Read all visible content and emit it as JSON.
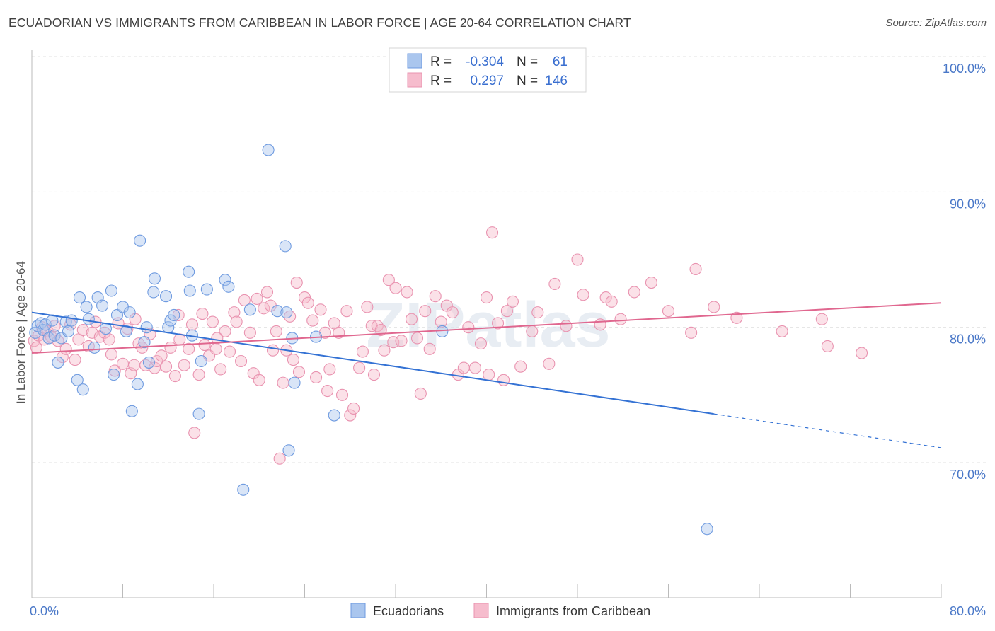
{
  "title": "ECUADORIAN VS IMMIGRANTS FROM CARIBBEAN IN LABOR FORCE | AGE 20-64 CORRELATION CHART",
  "source": "Source: ZipAtlas.com",
  "watermark": "ZIPatlas",
  "legend_top": [
    {
      "r_label": "R =",
      "r_value": "-0.304",
      "n_label": "N =",
      "n_value": "61",
      "color": "#aac6ee",
      "stroke": "#6f9be0"
    },
    {
      "r_label": "R =",
      "r_value": "0.297",
      "n_label": "N =",
      "n_value": "146",
      "color": "#f6bccd",
      "stroke": "#e993b0"
    }
  ],
  "chart_data": {
    "type": "scatter",
    "title": "ECUADORIAN VS IMMIGRANTS FROM CARIBBEAN IN LABOR FORCE | AGE 20-64 CORRELATION CHART",
    "xlabel": "",
    "ylabel": "In Labor Force | Age 20-64",
    "xlim": [
      0,
      80
    ],
    "ylim": [
      61,
      101.5
    ],
    "x_tick_labels": [
      "0.0%",
      "80.0%"
    ],
    "y_ticks": [
      70,
      80,
      90,
      100
    ],
    "y_tick_labels": [
      "70.0%",
      "80.0%",
      "90.0%",
      "100.0%"
    ],
    "grid": true,
    "legend_position": "top-center",
    "series": [
      {
        "name": "Ecuadorians",
        "color": "#aac6ee",
        "stroke": "#6f9be0",
        "trend": {
          "x0": 0,
          "y0": 81.1,
          "x1": 60,
          "y1": 73.6,
          "dashed_to_x": 80,
          "dashed_to_y": 71.1,
          "color": "#3472d4"
        },
        "points": [
          [
            0.3,
            79.6
          ],
          [
            0.5,
            80.1
          ],
          [
            0.8,
            80.3
          ],
          [
            1.0,
            79.8
          ],
          [
            1.2,
            80.2
          ],
          [
            1.5,
            79.2
          ],
          [
            1.8,
            80.5
          ],
          [
            2.0,
            79.4
          ],
          [
            2.3,
            77.4
          ],
          [
            2.6,
            79.2
          ],
          [
            3.0,
            80.4
          ],
          [
            3.2,
            79.7
          ],
          [
            3.5,
            80.5
          ],
          [
            4.0,
            76.1
          ],
          [
            4.2,
            82.2
          ],
          [
            4.5,
            75.4
          ],
          [
            4.8,
            81.5
          ],
          [
            5.0,
            80.6
          ],
          [
            5.5,
            78.5
          ],
          [
            5.8,
            82.2
          ],
          [
            6.2,
            81.6
          ],
          [
            6.5,
            79.9
          ],
          [
            7.0,
            82.7
          ],
          [
            7.2,
            76.5
          ],
          [
            7.5,
            80.9
          ],
          [
            8.0,
            81.5
          ],
          [
            8.3,
            79.7
          ],
          [
            8.6,
            81.1
          ],
          [
            8.8,
            73.8
          ],
          [
            9.3,
            75.8
          ],
          [
            9.5,
            86.4
          ],
          [
            9.9,
            78.9
          ],
          [
            10.1,
            80.0
          ],
          [
            10.3,
            77.4
          ],
          [
            10.7,
            82.6
          ],
          [
            10.8,
            83.6
          ],
          [
            11.8,
            82.3
          ],
          [
            12.0,
            80.0
          ],
          [
            12.2,
            80.5
          ],
          [
            12.5,
            80.9
          ],
          [
            13.8,
            84.1
          ],
          [
            13.9,
            82.7
          ],
          [
            14.1,
            79.4
          ],
          [
            14.7,
            73.6
          ],
          [
            14.9,
            77.5
          ],
          [
            15.4,
            82.8
          ],
          [
            17.0,
            83.5
          ],
          [
            17.3,
            83.0
          ],
          [
            18.6,
            68.0
          ],
          [
            19.2,
            81.3
          ],
          [
            20.8,
            93.1
          ],
          [
            21.6,
            81.2
          ],
          [
            22.3,
            86.0
          ],
          [
            22.4,
            81.1
          ],
          [
            22.6,
            70.9
          ],
          [
            22.9,
            79.2
          ],
          [
            23.1,
            75.9
          ],
          [
            25.0,
            79.3
          ],
          [
            26.6,
            73.5
          ],
          [
            36.1,
            79.7
          ],
          [
            59.4,
            65.1
          ]
        ]
      },
      {
        "name": "Immigrants from Caribbean",
        "color": "#f6bccd",
        "stroke": "#e993b0",
        "trend": {
          "x0": 0,
          "y0": 78.1,
          "x1": 80,
          "y1": 81.8,
          "color": "#e0678f"
        },
        "points": [
          [
            0.2,
            79.0
          ],
          [
            0.4,
            78.5
          ],
          [
            0.6,
            79.4
          ],
          [
            0.9,
            80.0
          ],
          [
            1.1,
            79.1
          ],
          [
            1.4,
            79.7
          ],
          [
            1.7,
            79.3
          ],
          [
            2.0,
            80.1
          ],
          [
            2.3,
            79.0
          ],
          [
            2.7,
            77.8
          ],
          [
            3.0,
            78.4
          ],
          [
            3.4,
            80.2
          ],
          [
            3.8,
            77.6
          ],
          [
            4.1,
            79.1
          ],
          [
            4.5,
            79.8
          ],
          [
            5.0,
            78.6
          ],
          [
            5.3,
            79.6
          ],
          [
            5.6,
            80.4
          ],
          [
            6.0,
            79.3
          ],
          [
            6.4,
            79.6
          ],
          [
            6.8,
            79.1
          ],
          [
            7.0,
            78.0
          ],
          [
            7.3,
            76.8
          ],
          [
            7.6,
            80.3
          ],
          [
            8.0,
            77.3
          ],
          [
            8.4,
            79.9
          ],
          [
            8.7,
            76.6
          ],
          [
            9.0,
            77.2
          ],
          [
            9.4,
            78.8
          ],
          [
            9.7,
            78.5
          ],
          [
            10.0,
            77.2
          ],
          [
            10.4,
            79.5
          ],
          [
            10.8,
            77.0
          ],
          [
            11.0,
            77.5
          ],
          [
            11.4,
            77.9
          ],
          [
            11.8,
            77.1
          ],
          [
            12.2,
            78.5
          ],
          [
            12.6,
            76.4
          ],
          [
            13.0,
            79.1
          ],
          [
            13.4,
            77.2
          ],
          [
            13.8,
            78.4
          ],
          [
            14.1,
            80.2
          ],
          [
            14.3,
            72.2
          ],
          [
            14.7,
            76.5
          ],
          [
            15.0,
            81.0
          ],
          [
            15.2,
            78.7
          ],
          [
            15.6,
            77.9
          ],
          [
            15.9,
            80.4
          ],
          [
            16.2,
            78.4
          ],
          [
            16.6,
            76.9
          ],
          [
            17.0,
            79.7
          ],
          [
            17.4,
            78.2
          ],
          [
            17.8,
            81.1
          ],
          [
            18.0,
            80.4
          ],
          [
            18.4,
            77.5
          ],
          [
            18.7,
            82.0
          ],
          [
            19.2,
            79.6
          ],
          [
            19.5,
            76.6
          ],
          [
            19.8,
            82.1
          ],
          [
            20.0,
            76.1
          ],
          [
            20.4,
            81.4
          ],
          [
            20.7,
            82.6
          ],
          [
            21.0,
            81.6
          ],
          [
            21.5,
            79.7
          ],
          [
            21.8,
            70.3
          ],
          [
            22.1,
            75.9
          ],
          [
            22.4,
            78.3
          ],
          [
            22.7,
            80.8
          ],
          [
            23.0,
            77.6
          ],
          [
            23.3,
            83.3
          ],
          [
            23.5,
            76.7
          ],
          [
            24.0,
            82.2
          ],
          [
            24.3,
            81.8
          ],
          [
            24.7,
            80.5
          ],
          [
            25.0,
            76.3
          ],
          [
            25.4,
            81.3
          ],
          [
            25.8,
            79.6
          ],
          [
            26.2,
            76.9
          ],
          [
            26.6,
            80.3
          ],
          [
            27.0,
            79.6
          ],
          [
            27.3,
            75.0
          ],
          [
            27.7,
            81.2
          ],
          [
            28.0,
            73.5
          ],
          [
            28.3,
            74.0
          ],
          [
            28.8,
            77.0
          ],
          [
            29.1,
            78.2
          ],
          [
            29.5,
            81.5
          ],
          [
            29.9,
            80.1
          ],
          [
            30.4,
            80.1
          ],
          [
            30.7,
            79.8
          ],
          [
            31.0,
            78.3
          ],
          [
            31.4,
            83.5
          ],
          [
            31.8,
            78.9
          ],
          [
            32.0,
            82.9
          ],
          [
            32.5,
            79.0
          ],
          [
            33.0,
            82.6
          ],
          [
            33.4,
            80.6
          ],
          [
            33.9,
            79.2
          ],
          [
            34.2,
            75.1
          ],
          [
            34.6,
            81.2
          ],
          [
            35.0,
            78.4
          ],
          [
            35.5,
            82.3
          ],
          [
            36.0,
            80.4
          ],
          [
            36.5,
            81.6
          ],
          [
            37.0,
            81.1
          ],
          [
            37.5,
            76.5
          ],
          [
            38.0,
            77.0
          ],
          [
            38.4,
            80.0
          ],
          [
            39.0,
            77.0
          ],
          [
            39.5,
            78.8
          ],
          [
            40.0,
            82.2
          ],
          [
            40.5,
            87.0
          ],
          [
            41.0,
            80.3
          ],
          [
            41.5,
            76.1
          ],
          [
            41.8,
            81.2
          ],
          [
            42.3,
            81.9
          ],
          [
            43.0,
            77.1
          ],
          [
            44.0,
            79.7
          ],
          [
            44.5,
            81.1
          ],
          [
            45.5,
            77.3
          ],
          [
            46.0,
            83.2
          ],
          [
            47.0,
            80.1
          ],
          [
            48.0,
            85.0
          ],
          [
            48.5,
            82.4
          ],
          [
            50.0,
            80.2
          ],
          [
            50.5,
            82.2
          ],
          [
            51.0,
            81.9
          ],
          [
            51.8,
            80.6
          ],
          [
            53.0,
            82.6
          ],
          [
            54.5,
            83.3
          ],
          [
            56.0,
            81.2
          ],
          [
            58.0,
            79.6
          ],
          [
            58.4,
            84.3
          ],
          [
            60.0,
            81.5
          ],
          [
            62.0,
            80.7
          ],
          [
            66.0,
            79.7
          ],
          [
            69.5,
            80.6
          ],
          [
            70.0,
            78.6
          ],
          [
            73.0,
            78.1
          ],
          [
            40.2,
            76.5
          ],
          [
            21.2,
            78.3
          ],
          [
            26.0,
            75.3
          ],
          [
            12.9,
            80.9
          ],
          [
            16.3,
            79.2
          ],
          [
            9.1,
            80.6
          ],
          [
            30.1,
            76.5
          ]
        ]
      }
    ]
  }
}
